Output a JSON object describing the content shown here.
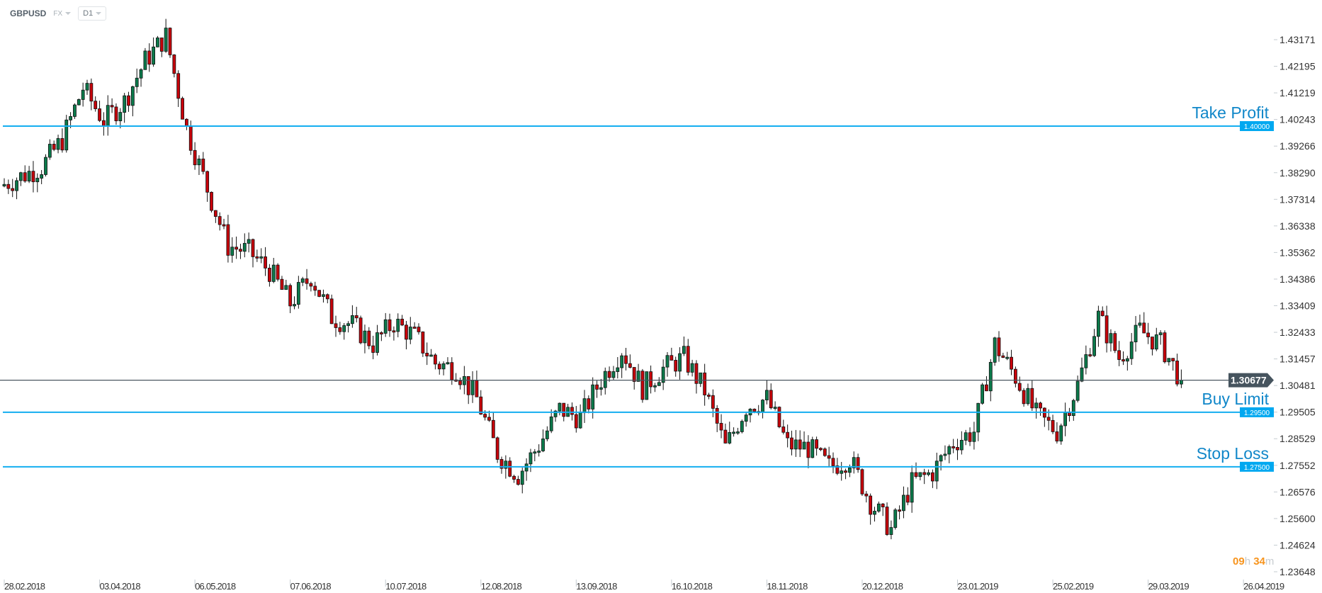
{
  "header": {
    "symbol": "GBPUSD",
    "market": "FX",
    "timeframe": "D1"
  },
  "timer": {
    "hours": "09",
    "h": "h",
    "minutes": "34",
    "m": "m"
  },
  "colors": {
    "up": "#0b7a4b",
    "down": "#c8000a",
    "level_line": "#14aef0",
    "level_badge": "#00a8f0",
    "level_text": "#1187c9",
    "current_line": "#4b5861",
    "timer": "#f7941d"
  },
  "chart_data": {
    "type": "candlestick",
    "timeframe": "D1",
    "ylim": [
      1.23648,
      1.43171
    ],
    "y_ticks": [
      "1.43171",
      "1.42195",
      "1.41219",
      "1.40243",
      "1.39266",
      "1.38290",
      "1.37314",
      "1.36338",
      "1.35362",
      "1.34386",
      "1.33409",
      "1.32433",
      "1.31457",
      "1.30481",
      "1.29505",
      "1.28529",
      "1.27552",
      "1.26576",
      "1.25600",
      "1.24624",
      "1.23648"
    ],
    "x_labels": [
      "28.02.2018",
      "03.04.2018",
      "06.05.2018",
      "07.06.2018",
      "10.07.2018",
      "12.08.2018",
      "13.09.2018",
      "16.10.2018",
      "18.11.2018",
      "20.12.2018",
      "23.01.2019",
      "25.02.2019",
      "29.03.2019",
      "26.04.2019"
    ],
    "approx_weekly_closes": [
      1.378,
      1.3815,
      1.385,
      1.395,
      1.414,
      1.402,
      1.409,
      1.424,
      1.433,
      1.399,
      1.377,
      1.356,
      1.354,
      1.347,
      1.335,
      1.345,
      1.33,
      1.327,
      1.32,
      1.328,
      1.323,
      1.313,
      1.311,
      1.3,
      1.28,
      1.272,
      1.283,
      1.296,
      1.293,
      1.307,
      1.318,
      1.304,
      1.311,
      1.315,
      1.303,
      1.282,
      1.297,
      1.3,
      1.283,
      1.282,
      1.275,
      1.278,
      1.262,
      1.252,
      1.269,
      1.273,
      1.284,
      1.288,
      1.32,
      1.308,
      1.294,
      1.288,
      1.305,
      1.33,
      1.315,
      1.325,
      1.32,
      1.30677
    ],
    "current_price": "1.30677",
    "levels": [
      {
        "name": "Take Profit",
        "price": "1.40000"
      },
      {
        "name": "Buy Limit",
        "price": "1.29500"
      },
      {
        "name": "Stop Loss",
        "price": "1.27500"
      }
    ]
  }
}
